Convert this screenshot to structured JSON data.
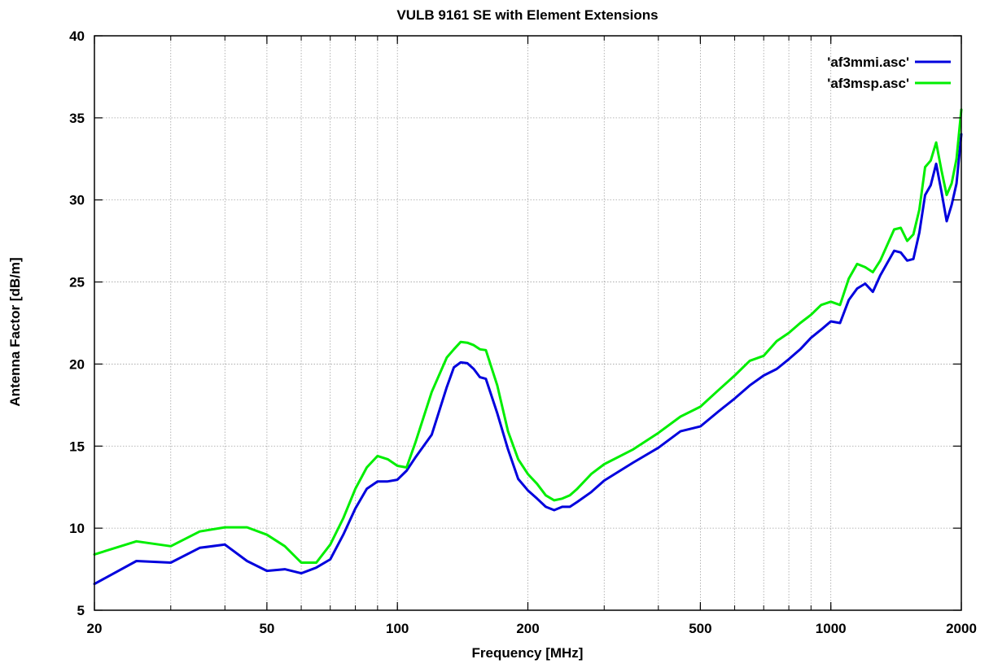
{
  "chart_data": {
    "type": "line",
    "title": "VULB 9161 SE with Element Extensions",
    "xlabel": "Frequency [MHz]",
    "ylabel": "Antenna Factor [dB/m]",
    "xscale": "log",
    "xlim": [
      20,
      2000
    ],
    "ylim": [
      5,
      40
    ],
    "xticks": [
      20,
      50,
      100,
      200,
      500,
      1000,
      2000
    ],
    "xtick_labels": [
      "20",
      "50",
      "100",
      "200",
      "500",
      "1000",
      "2000"
    ],
    "yticks": [
      5,
      10,
      15,
      20,
      25,
      30,
      35,
      40
    ],
    "ytick_labels": [
      "5",
      "10",
      "15",
      "20",
      "25",
      "30",
      "35",
      "40"
    ],
    "grid": true,
    "legend_position": "top-right",
    "series": [
      {
        "name": "'af3mmi.asc'",
        "color": "#0000dd",
        "x": [
          20,
          25,
          30,
          35,
          40,
          45,
          50,
          55,
          60,
          65,
          70,
          75,
          80,
          85,
          90,
          95,
          100,
          105,
          110,
          120,
          130,
          135,
          140,
          145,
          150,
          155,
          160,
          170,
          180,
          190,
          200,
          210,
          220,
          230,
          240,
          250,
          260,
          280,
          300,
          350,
          400,
          450,
          500,
          550,
          600,
          650,
          700,
          750,
          800,
          850,
          900,
          950,
          1000,
          1050,
          1100,
          1150,
          1200,
          1250,
          1300,
          1400,
          1450,
          1500,
          1550,
          1600,
          1650,
          1700,
          1750,
          1800,
          1850,
          1900,
          1950,
          2000
        ],
        "values": [
          6.6,
          8.0,
          7.9,
          8.8,
          9.0,
          8.0,
          7.4,
          7.5,
          7.25,
          7.6,
          8.1,
          9.6,
          11.2,
          12.4,
          12.85,
          12.85,
          12.95,
          13.5,
          14.3,
          15.7,
          18.6,
          19.8,
          20.1,
          20.05,
          19.7,
          19.2,
          19.1,
          17.0,
          14.8,
          13.0,
          12.3,
          11.8,
          11.3,
          11.1,
          11.3,
          11.3,
          11.6,
          12.2,
          12.9,
          14.0,
          14.9,
          15.9,
          16.2,
          17.1,
          17.9,
          18.7,
          19.3,
          19.7,
          20.3,
          20.9,
          21.6,
          22.1,
          22.6,
          22.5,
          23.9,
          24.6,
          24.9,
          24.4,
          25.4,
          26.9,
          26.8,
          26.3,
          26.4,
          28.0,
          30.3,
          30.9,
          32.2,
          30.5,
          28.7,
          29.7,
          31.0,
          34.0
        ]
      },
      {
        "name": "'af3msp.asc'",
        "color": "#00ee00",
        "x": [
          20,
          25,
          30,
          35,
          40,
          45,
          50,
          55,
          60,
          65,
          70,
          75,
          80,
          85,
          90,
          95,
          100,
          105,
          110,
          120,
          130,
          135,
          140,
          145,
          150,
          155,
          160,
          170,
          180,
          190,
          200,
          210,
          220,
          230,
          240,
          250,
          260,
          280,
          300,
          350,
          400,
          450,
          500,
          550,
          600,
          650,
          700,
          750,
          800,
          850,
          900,
          950,
          1000,
          1050,
          1100,
          1150,
          1200,
          1250,
          1300,
          1400,
          1450,
          1500,
          1550,
          1600,
          1650,
          1700,
          1750,
          1800,
          1850,
          1900,
          1950,
          2000
        ],
        "values": [
          8.4,
          9.2,
          8.9,
          9.8,
          10.05,
          10.05,
          9.6,
          8.9,
          7.9,
          7.9,
          9.0,
          10.6,
          12.4,
          13.7,
          14.4,
          14.2,
          13.8,
          13.7,
          15.2,
          18.3,
          20.4,
          20.9,
          21.35,
          21.3,
          21.15,
          20.9,
          20.85,
          18.7,
          15.9,
          14.2,
          13.3,
          12.7,
          12.0,
          11.7,
          11.8,
          12.0,
          12.4,
          13.3,
          13.9,
          14.8,
          15.8,
          16.8,
          17.4,
          18.4,
          19.3,
          20.2,
          20.5,
          21.4,
          21.9,
          22.5,
          23.0,
          23.6,
          23.8,
          23.6,
          25.2,
          26.1,
          25.9,
          25.6,
          26.3,
          28.2,
          28.3,
          27.5,
          27.9,
          29.4,
          32.0,
          32.4,
          33.5,
          31.8,
          30.3,
          31.0,
          32.5,
          35.5
        ]
      }
    ]
  }
}
